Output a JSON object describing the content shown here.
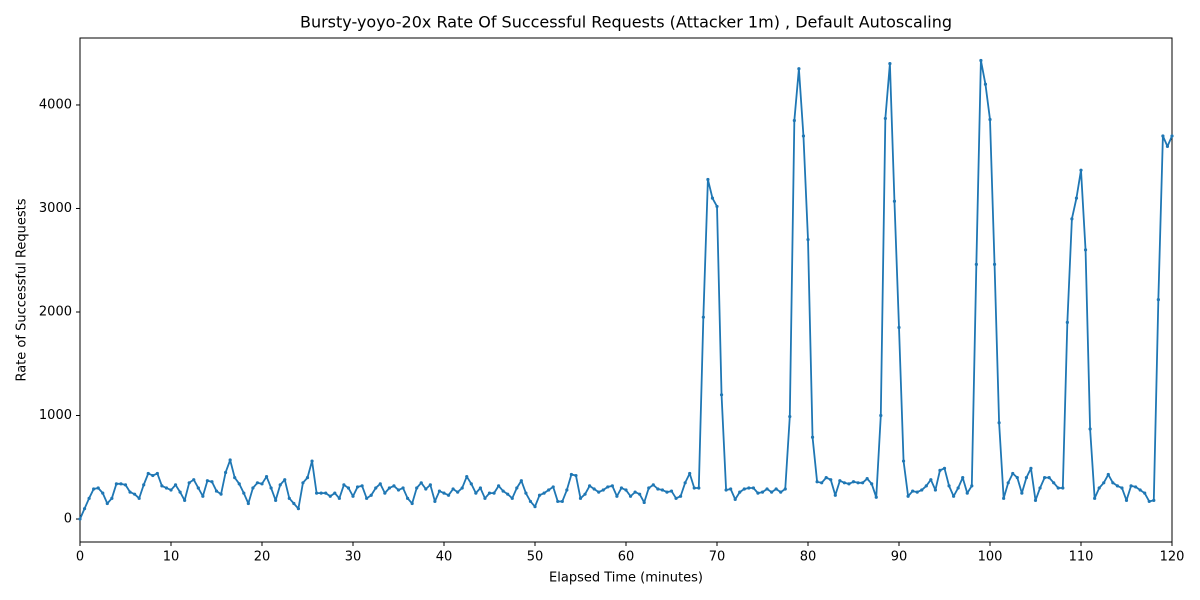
{
  "chart_data": {
    "type": "line",
    "title": "Bursty-yoyo-20x Rate Of Successful Requests (Attacker 1m) , Default Autoscaling",
    "x_label": "Elapsed Time (minutes)",
    "y_label": "Rate of Successful Requests",
    "xlim": [
      0,
      120
    ],
    "ylim": [
      -222,
      4647
    ],
    "xticks": [
      0,
      10,
      20,
      30,
      40,
      50,
      60,
      70,
      80,
      90,
      100,
      110,
      120
    ],
    "yticks": [
      0,
      1000,
      2000,
      3000,
      4000
    ],
    "grid": false,
    "x": [
      0,
      0.5,
      1,
      1.5,
      2,
      2.5,
      3,
      3.5,
      4,
      4.5,
      5,
      5.5,
      6,
      6.5,
      7,
      7.5,
      8,
      8.5,
      9,
      9.5,
      10,
      10.5,
      11,
      11.5,
      12,
      12.5,
      13,
      13.5,
      14,
      14.5,
      15,
      15.5,
      16,
      16.5,
      17,
      17.5,
      18,
      18.5,
      19,
      19.5,
      20,
      20.5,
      21,
      21.5,
      22,
      22.5,
      23,
      23.5,
      24,
      24.5,
      25,
      25.5,
      26,
      26.5,
      27,
      27.5,
      28,
      28.5,
      29,
      29.5,
      30,
      30.5,
      31,
      31.5,
      32,
      32.5,
      33,
      33.5,
      34,
      34.5,
      35,
      35.5,
      36,
      36.5,
      37,
      37.5,
      38,
      38.5,
      39,
      39.5,
      40,
      40.5,
      41,
      41.5,
      42,
      42.5,
      43,
      43.5,
      44,
      44.5,
      45,
      45.5,
      46,
      46.5,
      47,
      47.5,
      48,
      48.5,
      49,
      49.5,
      50,
      50.5,
      51,
      51.5,
      52,
      52.5,
      53,
      53.5,
      54,
      54.5,
      55,
      55.5,
      56,
      56.5,
      57,
      57.5,
      58,
      58.5,
      59,
      59.5,
      60,
      60.5,
      61,
      61.5,
      62,
      62.5,
      63,
      63.5,
      64,
      64.5,
      65,
      65.5,
      66,
      66.5,
      67,
      67.5,
      68,
      68.5,
      69,
      69.5,
      70,
      70.5,
      71,
      71.5,
      72,
      72.5,
      73,
      73.5,
      74,
      74.5,
      75,
      75.5,
      76,
      76.5,
      77,
      77.5,
      78,
      78.5,
      79,
      79.5,
      80,
      80.5,
      81,
      81.5,
      82,
      82.5,
      83,
      83.5,
      84,
      84.5,
      85,
      85.5,
      86,
      86.5,
      87,
      87.5,
      88,
      88.5,
      89,
      89.5,
      90,
      90.5,
      91,
      91.5,
      92,
      92.5,
      93,
      93.5,
      94,
      94.5,
      95,
      95.5,
      96,
      96.5,
      97,
      97.5,
      98,
      98.5,
      99,
      99.5,
      100,
      100.5,
      101,
      101.5,
      102,
      102.5,
      103,
      103.5,
      104,
      104.5,
      105,
      105.5,
      106,
      106.5,
      107,
      107.5,
      108,
      108.5,
      109,
      109.5,
      110,
      110.5,
      111,
      111.5,
      112,
      112.5,
      113,
      113.5,
      114,
      114.5,
      115,
      115.5,
      116,
      116.5,
      117,
      117.5,
      118,
      118.5,
      119,
      119.5,
      120
    ],
    "series": [
      {
        "color": "#1f77b4",
        "values": [
          0,
          100,
          200,
          290,
          300,
          250,
          150,
          200,
          340,
          340,
          330,
          260,
          240,
          200,
          330,
          440,
          420,
          440,
          320,
          300,
          280,
          330,
          260,
          180,
          350,
          380,
          300,
          220,
          370,
          360,
          270,
          240,
          450,
          570,
          400,
          340,
          250,
          150,
          300,
          350,
          340,
          410,
          300,
          180,
          330,
          380,
          200,
          150,
          100,
          350,
          400,
          560,
          250,
          250,
          250,
          220,
          250,
          200,
          330,
          300,
          220,
          310,
          320,
          200,
          230,
          300,
          340,
          250,
          300,
          320,
          280,
          300,
          200,
          150,
          300,
          350,
          290,
          330,
          170,
          270,
          250,
          230,
          290,
          260,
          300,
          410,
          340,
          250,
          300,
          200,
          250,
          250,
          320,
          270,
          240,
          200,
          300,
          370,
          250,
          170,
          120,
          230,
          250,
          280,
          310,
          170,
          170,
          280,
          430,
          420,
          200,
          240,
          320,
          290,
          260,
          280,
          310,
          320,
          220,
          300,
          280,
          220,
          260,
          240,
          160,
          300,
          330,
          290,
          280,
          260,
          270,
          200,
          220,
          350,
          440,
          300,
          300,
          1950,
          3280,
          3100,
          3020,
          1200,
          280,
          290,
          190,
          260,
          290,
          300,
          300,
          250,
          260,
          290,
          260,
          290,
          260,
          290,
          990,
          3850,
          4350,
          3700,
          2700,
          790,
          360,
          350,
          400,
          380,
          230,
          370,
          350,
          340,
          360,
          350,
          350,
          390,
          340,
          210,
          1000,
          3870,
          4400,
          3070,
          1850,
          560,
          220,
          270,
          260,
          280,
          320,
          380,
          280,
          470,
          490,
          320,
          220,
          300,
          400,
          250,
          320,
          2460,
          4430,
          4200,
          3860,
          2460,
          930,
          200,
          350,
          440,
          400,
          250,
          400,
          490,
          180,
          300,
          400,
          400,
          350,
          300,
          300,
          1900,
          2900,
          3100,
          3370,
          2600,
          870,
          200,
          300,
          350,
          430,
          350,
          320,
          300,
          180,
          320,
          310,
          280,
          250,
          170,
          180,
          2120,
          3700,
          3600,
          3700
        ]
      }
    ]
  }
}
